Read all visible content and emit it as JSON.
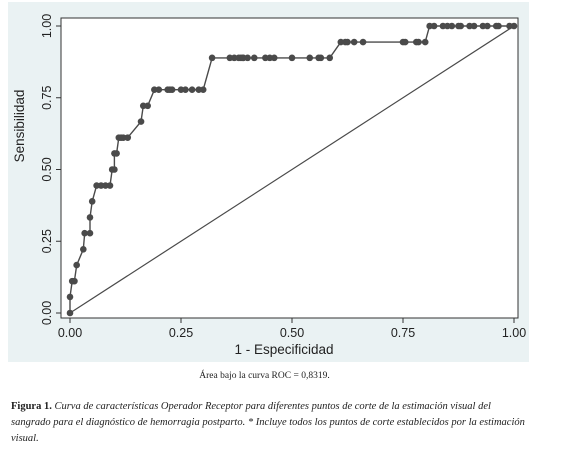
{
  "chart_data": {
    "type": "line",
    "xlabel": "1 - Especificidad",
    "ylabel": "Sensibilidad",
    "xlim": [
      0,
      1
    ],
    "ylim": [
      0,
      1
    ],
    "xticks": [
      "0.00",
      "0.25",
      "0.50",
      "0.75",
      "1.00"
    ],
    "yticks": [
      "0.00",
      "0.25",
      "0.50",
      "0.75",
      "1.00"
    ],
    "grid": false,
    "series": [
      {
        "type": "line-markers",
        "color": "#4a4a4a",
        "x": [
          0.0,
          0.0,
          0.005,
          0.01,
          0.015,
          0.03,
          0.033,
          0.045,
          0.045,
          0.05,
          0.06,
          0.07,
          0.08,
          0.09,
          0.095,
          0.1,
          0.1,
          0.105,
          0.11,
          0.115,
          0.12,
          0.13,
          0.16,
          0.165,
          0.175,
          0.19,
          0.2,
          0.22,
          0.225,
          0.23,
          0.25,
          0.26,
          0.275,
          0.29,
          0.3,
          0.32,
          0.36,
          0.37,
          0.38,
          0.385,
          0.39,
          0.39,
          0.4,
          0.415,
          0.44,
          0.45,
          0.46,
          0.5,
          0.54,
          0.56,
          0.565,
          0.585,
          0.61,
          0.62,
          0.625,
          0.64,
          0.66,
          0.75,
          0.755,
          0.78,
          0.785,
          0.8,
          0.81,
          0.82,
          0.84,
          0.85,
          0.86,
          0.875,
          0.88,
          0.9,
          0.91,
          0.93,
          0.94,
          0.96,
          0.965,
          0.99,
          1.0
        ],
        "y": [
          0.0,
          0.056,
          0.111,
          0.111,
          0.167,
          0.222,
          0.278,
          0.278,
          0.333,
          0.389,
          0.444,
          0.444,
          0.444,
          0.444,
          0.5,
          0.5,
          0.556,
          0.556,
          0.611,
          0.611,
          0.611,
          0.611,
          0.667,
          0.722,
          0.722,
          0.778,
          0.778,
          0.778,
          0.778,
          0.778,
          0.778,
          0.778,
          0.778,
          0.778,
          0.778,
          0.889,
          0.889,
          0.889,
          0.889,
          0.889,
          0.889,
          0.889,
          0.889,
          0.889,
          0.889,
          0.889,
          0.889,
          0.889,
          0.889,
          0.889,
          0.889,
          0.889,
          0.944,
          0.944,
          0.944,
          0.944,
          0.944,
          0.944,
          0.944,
          0.944,
          0.944,
          0.944,
          1.0,
          1.0,
          1.0,
          1.0,
          1.0,
          1.0,
          1.0,
          1.0,
          1.0,
          1.0,
          1.0,
          1.0,
          1.0,
          1.0,
          1.0
        ]
      },
      {
        "type": "reference-line",
        "color": "#4a4a4a",
        "x": [
          0,
          1
        ],
        "y": [
          0,
          1
        ]
      }
    ]
  },
  "auc_note": "Área bajo la curva ROC = 0,8319.",
  "caption": {
    "label": "Figura 1.",
    "text": "Curva de características Operador Receptor para diferentes puntos de corte de la estimación visual del sangrado para el diagnóstico de hemorragia postparto. * Incluye todos los puntos de corte establecidos por la estimación visual."
  }
}
